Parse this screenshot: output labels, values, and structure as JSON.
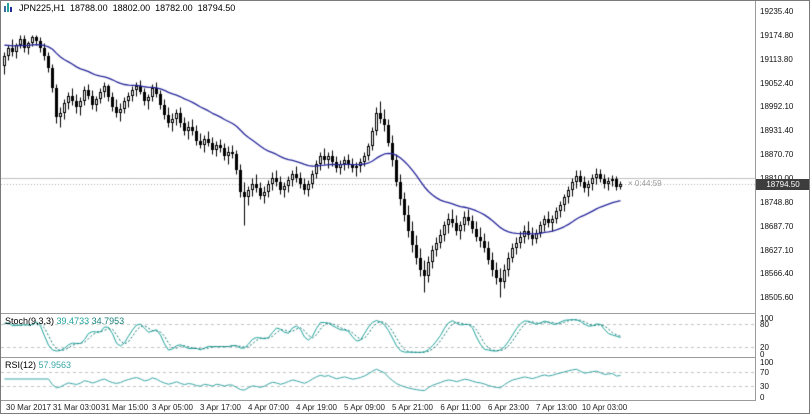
{
  "header": {
    "symbol_period": "JPN225,H1",
    "open": "18788.00",
    "high": "18802.00",
    "low": "18782.00",
    "close": "18794.50",
    "countdown": "× 0:44:59"
  },
  "price_axis": {
    "current_price": "18794.50",
    "ticks": [
      "19235.40",
      "19174.80",
      "19113.80",
      "19052.40",
      "18992.10",
      "18931.40",
      "18870.70",
      "18810.00",
      "18748.80",
      "18687.70",
      "18627.10",
      "18566.40",
      "18505.60"
    ]
  },
  "indicators": {
    "stoch": {
      "label": "Stoch(9,3,3)",
      "value_k": "39.4733",
      "value_d": "34.7953",
      "scale": [
        "100",
        "80",
        "20",
        "0"
      ],
      "levels": [
        80,
        20
      ]
    },
    "rsi": {
      "label": "RSI(12)",
      "value": "57.9563",
      "scale": [
        "100",
        "70",
        "30",
        "0"
      ],
      "levels": [
        70,
        30
      ]
    }
  },
  "time_axis": {
    "labels": [
      "30 Mar 2017",
      "31 Mar 03:00",
      "31 Mar 15:00",
      "3 Apr 05:00",
      "3 Apr 17:00",
      "4 Apr 07:00",
      "4 Apr 19:00",
      "5 Apr 09:00",
      "5 Apr 21:00",
      "6 Apr 11:00",
      "6 Apr 23:00",
      "7 Apr 13:00",
      "10 Apr 03:00"
    ]
  },
  "colors": {
    "background": "#ffffff",
    "candle_outline": "#000000",
    "bull_fill": "#ffffff",
    "bear_fill": "#000000",
    "ma": "#26269b",
    "stoch_main": "#1fa39b",
    "stoch_signal": "#157f7a",
    "rsi": "#3aa6a6",
    "level": "#c4c4c4",
    "hline": "#c0c0c0",
    "bid_line": "#b0b0b0",
    "price_tag_bg": "#3d3d3d",
    "separator": "#9b9b9b"
  },
  "chart_data": {
    "type": "candlestick",
    "symbol": "JPN225",
    "timeframe": "H1",
    "grid": "off",
    "legend_position": "none",
    "ylim": [
      18468,
      19261
    ],
    "hline_price": 18810.0,
    "bid": 18794.5,
    "ohlc_current": {
      "open": 18788.0,
      "high": 18802.0,
      "low": 18782.0,
      "close": 18794.5
    },
    "ma": {
      "description": "dark blue moving average overlay",
      "alpha": 0.06,
      "seed": 19150
    },
    "x_tick_indices": [
      6,
      18,
      30,
      42,
      54,
      66,
      78,
      90,
      102,
      114,
      126,
      138,
      150
    ],
    "indicator_panels": [
      {
        "name": "Stochastic",
        "params": "9,3,3",
        "levels": [
          80,
          20
        ],
        "range": [
          0,
          100
        ]
      },
      {
        "name": "RSI",
        "params": "12",
        "levels": [
          70,
          30
        ],
        "range": [
          0,
          100
        ]
      }
    ],
    "candles": [
      [
        19095,
        19130,
        19075,
        19120
      ],
      [
        19120,
        19150,
        19110,
        19140
      ],
      [
        19140,
        19165,
        19120,
        19130
      ],
      [
        19130,
        19155,
        19115,
        19150
      ],
      [
        19150,
        19175,
        19140,
        19165
      ],
      [
        19165,
        19175,
        19130,
        19140
      ],
      [
        19140,
        19160,
        19125,
        19155
      ],
      [
        19155,
        19174,
        19145,
        19170
      ],
      [
        19170,
        19174,
        19150,
        19160
      ],
      [
        19160,
        19170,
        19130,
        19140
      ],
      [
        19140,
        19155,
        19110,
        19120
      ],
      [
        19120,
        19130,
        19080,
        19090
      ],
      [
        19090,
        19100,
        19030,
        19040
      ],
      [
        19040,
        19050,
        18950,
        18965
      ],
      [
        18965,
        18990,
        18940,
        18975
      ],
      [
        18975,
        19010,
        18960,
        19000
      ],
      [
        19000,
        19030,
        18985,
        19020
      ],
      [
        19020,
        19040,
        18995,
        19005
      ],
      [
        19005,
        19025,
        18975,
        18990
      ],
      [
        18990,
        19015,
        18970,
        19005
      ],
      [
        19005,
        19045,
        18995,
        19035
      ],
      [
        19035,
        19050,
        19010,
        19020
      ],
      [
        19020,
        19035,
        18985,
        18995
      ],
      [
        18995,
        19020,
        18980,
        19010
      ],
      [
        19010,
        19040,
        19000,
        19030
      ],
      [
        19030,
        19055,
        19015,
        19045
      ],
      [
        19045,
        19050,
        19005,
        19015
      ],
      [
        19015,
        19030,
        18980,
        18990
      ],
      [
        18990,
        19010,
        18965,
        18975
      ],
      [
        18975,
        19000,
        18955,
        18985
      ],
      [
        18985,
        19015,
        18975,
        19005
      ],
      [
        19005,
        19030,
        18990,
        19020
      ],
      [
        19020,
        19045,
        19005,
        19035
      ],
      [
        19035,
        19055,
        19020,
        19045
      ],
      [
        19045,
        19060,
        19025,
        19030
      ],
      [
        19030,
        19040,
        18995,
        19005
      ],
      [
        19005,
        19025,
        18985,
        19015
      ],
      [
        19015,
        19050,
        19005,
        19040
      ],
      [
        19040,
        19055,
        19015,
        19025
      ],
      [
        19025,
        19035,
        18985,
        18995
      ],
      [
        18995,
        19010,
        18960,
        18970
      ],
      [
        18970,
        18990,
        18940,
        18950
      ],
      [
        18950,
        18975,
        18930,
        18960
      ],
      [
        18960,
        18985,
        18945,
        18975
      ],
      [
        18975,
        18990,
        18940,
        18950
      ],
      [
        18950,
        18965,
        18920,
        18930
      ],
      [
        18930,
        18955,
        18910,
        18940
      ],
      [
        18940,
        18960,
        18920,
        18930
      ],
      [
        18930,
        18945,
        18895,
        18905
      ],
      [
        18905,
        18925,
        18885,
        18895
      ],
      [
        18895,
        18920,
        18875,
        18910
      ],
      [
        18910,
        18930,
        18890,
        18900
      ],
      [
        18900,
        18915,
        18870,
        18880
      ],
      [
        18880,
        18905,
        18865,
        18895
      ],
      [
        18895,
        18910,
        18875,
        18885
      ],
      [
        18885,
        18900,
        18855,
        18865
      ],
      [
        18865,
        18890,
        18845,
        18875
      ],
      [
        18875,
        18895,
        18860,
        18870
      ],
      [
        18870,
        18880,
        18820,
        18830
      ],
      [
        18830,
        18845,
        18760,
        18775
      ],
      [
        18775,
        18800,
        18690,
        18760
      ],
      [
        18760,
        18790,
        18740,
        18780
      ],
      [
        18780,
        18810,
        18765,
        18795
      ],
      [
        18795,
        18820,
        18775,
        18785
      ],
      [
        18785,
        18800,
        18755,
        18765
      ],
      [
        18765,
        18790,
        18745,
        18775
      ],
      [
        18775,
        18805,
        18760,
        18795
      ],
      [
        18795,
        18825,
        18780,
        18810
      ],
      [
        18810,
        18830,
        18790,
        18800
      ],
      [
        18800,
        18815,
        18770,
        18780
      ],
      [
        18780,
        18800,
        18760,
        18790
      ],
      [
        18790,
        18815,
        18775,
        18805
      ],
      [
        18805,
        18830,
        18790,
        18820
      ],
      [
        18820,
        18840,
        18800,
        18810
      ],
      [
        18810,
        18825,
        18785,
        18795
      ],
      [
        18795,
        18810,
        18770,
        18780
      ],
      [
        18780,
        18805,
        18765,
        18795
      ],
      [
        18795,
        18830,
        18785,
        18820
      ],
      [
        18820,
        18855,
        18810,
        18845
      ],
      [
        18845,
        18875,
        18830,
        18865
      ],
      [
        18865,
        18885,
        18845,
        18855
      ],
      [
        18855,
        18875,
        18835,
        18865
      ],
      [
        18865,
        18880,
        18840,
        18850
      ],
      [
        18850,
        18865,
        18825,
        18835
      ],
      [
        18835,
        18855,
        18820,
        18845
      ],
      [
        18845,
        18865,
        18830,
        18855
      ],
      [
        18855,
        18870,
        18835,
        18845
      ],
      [
        18845,
        18860,
        18825,
        18835
      ],
      [
        18835,
        18850,
        18815,
        18840
      ],
      [
        18840,
        18860,
        18825,
        18850
      ],
      [
        18850,
        18875,
        18840,
        18865
      ],
      [
        18865,
        18900,
        18855,
        18890
      ],
      [
        18890,
        18940,
        18880,
        18930
      ],
      [
        18930,
        18990,
        18920,
        18975
      ],
      [
        18975,
        19005,
        18950,
        18960
      ],
      [
        18960,
        18985,
        18930,
        18945
      ],
      [
        18945,
        18960,
        18890,
        18900
      ],
      [
        18900,
        18920,
        18840,
        18855
      ],
      [
        18855,
        18870,
        18790,
        18800
      ],
      [
        18800,
        18820,
        18740,
        18755
      ],
      [
        18755,
        18775,
        18700,
        18715
      ],
      [
        18715,
        18740,
        18660,
        18675
      ],
      [
        18675,
        18700,
        18620,
        18640
      ],
      [
        18640,
        18665,
        18590,
        18605
      ],
      [
        18605,
        18630,
        18560,
        18575
      ],
      [
        18575,
        18600,
        18520,
        18560
      ],
      [
        18560,
        18610,
        18545,
        18595
      ],
      [
        18595,
        18640,
        18580,
        18625
      ],
      [
        18625,
        18660,
        18610,
        18645
      ],
      [
        18645,
        18680,
        18630,
        18665
      ],
      [
        18665,
        18700,
        18650,
        18690
      ],
      [
        18690,
        18720,
        18670,
        18705
      ],
      [
        18705,
        18730,
        18685,
        18695
      ],
      [
        18695,
        18715,
        18665,
        18675
      ],
      [
        18675,
        18700,
        18655,
        18690
      ],
      [
        18690,
        18725,
        18675,
        18710
      ],
      [
        18710,
        18730,
        18690,
        18700
      ],
      [
        18700,
        18715,
        18670,
        18680
      ],
      [
        18680,
        18700,
        18650,
        18660
      ],
      [
        18660,
        18685,
        18635,
        18650
      ],
      [
        18650,
        18670,
        18620,
        18630
      ],
      [
        18630,
        18650,
        18590,
        18600
      ],
      [
        18600,
        18620,
        18560,
        18575
      ],
      [
        18575,
        18595,
        18540,
        18555
      ],
      [
        18555,
        18580,
        18505,
        18545
      ],
      [
        18545,
        18590,
        18530,
        18575
      ],
      [
        18575,
        18620,
        18560,
        18605
      ],
      [
        18605,
        18645,
        18595,
        18630
      ],
      [
        18630,
        18660,
        18615,
        18645
      ],
      [
        18645,
        18675,
        18630,
        18660
      ],
      [
        18660,
        18690,
        18645,
        18675
      ],
      [
        18675,
        18700,
        18655,
        18665
      ],
      [
        18665,
        18685,
        18640,
        18655
      ],
      [
        18655,
        18680,
        18645,
        18670
      ],
      [
        18670,
        18700,
        18660,
        18690
      ],
      [
        18690,
        18715,
        18675,
        18705
      ],
      [
        18705,
        18725,
        18685,
        18695
      ],
      [
        18695,
        18715,
        18675,
        18705
      ],
      [
        18705,
        18735,
        18695,
        18725
      ],
      [
        18725,
        18750,
        18710,
        18740
      ],
      [
        18740,
        18770,
        18725,
        18760
      ],
      [
        18760,
        18790,
        18745,
        18780
      ],
      [
        18780,
        18810,
        18765,
        18800
      ],
      [
        18800,
        18830,
        18785,
        18815
      ],
      [
        18815,
        18830,
        18790,
        18800
      ],
      [
        18800,
        18815,
        18775,
        18785
      ],
      [
        18785,
        18805,
        18765,
        18795
      ],
      [
        18795,
        18820,
        18780,
        18810
      ],
      [
        18810,
        18835,
        18795,
        18820
      ],
      [
        18820,
        18832,
        18800,
        18808
      ],
      [
        18808,
        18820,
        18785,
        18795
      ],
      [
        18795,
        18812,
        18780,
        18802
      ],
      [
        18802,
        18818,
        18790,
        18806
      ],
      [
        18806,
        18815,
        18778,
        18788
      ],
      [
        18788,
        18802,
        18782,
        18794.5
      ]
    ]
  }
}
